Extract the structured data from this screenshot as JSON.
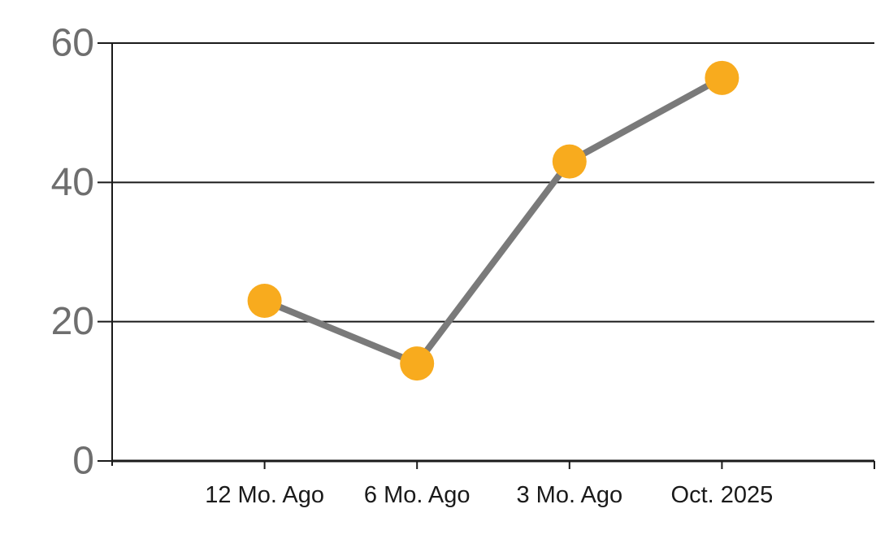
{
  "chart_data": {
    "type": "line",
    "categories": [
      "12 Mo. Ago",
      "6 Mo. Ago",
      "3 Mo. Ago",
      "Oct. 2025"
    ],
    "values": [
      23,
      14,
      43,
      55
    ],
    "ylim": [
      0,
      60
    ],
    "yticks": [
      0,
      20,
      40,
      60
    ],
    "grid": true,
    "legend": "none",
    "colors": {
      "marker": "#F8AB1E",
      "line": "#7A7A7A",
      "axis": "#1A1A1A",
      "gridline": "#1A1A1A",
      "ytick_label": "#6E6E6E",
      "xtick_label": "#1A1A1A",
      "background": "#FFFFFF"
    }
  }
}
